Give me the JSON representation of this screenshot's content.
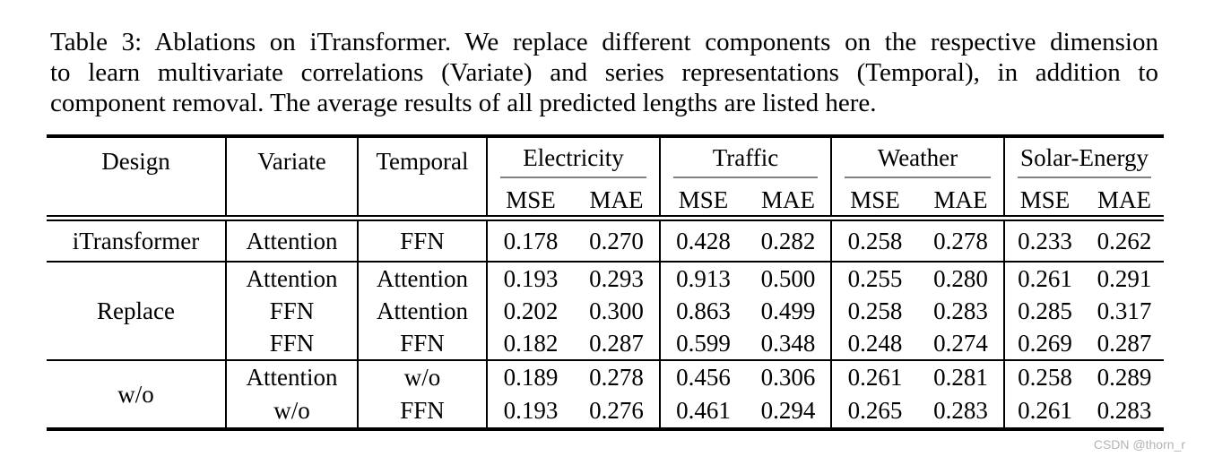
{
  "caption": {
    "lines": [
      "Table 3: Ablations on iTransformer. We replace different components on the respective dimension",
      "to learn multivariate correlations (Variate) and series representations (Temporal), in addition to",
      "component removal. The average results of all predicted lengths are listed here."
    ]
  },
  "table": {
    "col_headers": [
      "Design",
      "Variate",
      "Temporal"
    ],
    "groups": [
      {
        "label": "Electricity"
      },
      {
        "label": "Traffic"
      },
      {
        "label": "Weather"
      },
      {
        "label": "Solar-Energy"
      }
    ],
    "metric_headers": [
      "MSE",
      "MAE",
      "MSE",
      "MAE",
      "MSE",
      "MAE",
      "MSE",
      "MAE"
    ],
    "cmidrule_color": "#808080",
    "sections": [
      {
        "design": "iTransformer",
        "bold_design": true,
        "rows": [
          {
            "variate": "Attention",
            "temporal": "FFN",
            "bold_row_labels": true,
            "values": [
              "0.178",
              "0.270",
              "0.428",
              "0.282",
              "0.258",
              "0.278",
              "0.233",
              "0.262"
            ],
            "bold": [
              true,
              true,
              true,
              true,
              false,
              false,
              true,
              true
            ]
          }
        ]
      },
      {
        "design": "Replace",
        "bold_design": false,
        "rows": [
          {
            "variate": "Attention",
            "temporal": "Attention",
            "bold_row_labels": false,
            "values": [
              "0.193",
              "0.293",
              "0.913",
              "0.500",
              "0.255",
              "0.280",
              "0.261",
              "0.291"
            ],
            "bold": [
              false,
              false,
              false,
              false,
              false,
              false,
              false,
              false
            ]
          },
          {
            "variate": "FFN",
            "temporal": "Attention",
            "bold_row_labels": false,
            "values": [
              "0.202",
              "0.300",
              "0.863",
              "0.499",
              "0.258",
              "0.283",
              "0.285",
              "0.317"
            ],
            "bold": [
              false,
              false,
              false,
              false,
              false,
              false,
              false,
              false
            ]
          },
          {
            "variate": "FFN",
            "temporal": "FFN",
            "bold_row_labels": false,
            "values": [
              "0.182",
              "0.287",
              "0.599",
              "0.348",
              "0.248",
              "0.274",
              "0.269",
              "0.287"
            ],
            "bold": [
              false,
              false,
              false,
              false,
              true,
              true,
              false,
              false
            ]
          }
        ]
      },
      {
        "design": "w/o",
        "bold_design": false,
        "rows": [
          {
            "variate": "Attention",
            "temporal": "w/o",
            "bold_row_labels": false,
            "values": [
              "0.189",
              "0.278",
              "0.456",
              "0.306",
              "0.261",
              "0.281",
              "0.258",
              "0.289"
            ],
            "bold": [
              false,
              false,
              false,
              false,
              false,
              false,
              false,
              false
            ]
          },
          {
            "variate": "w/o",
            "temporal": "FFN",
            "bold_row_labels": false,
            "values": [
              "0.193",
              "0.276",
              "0.461",
              "0.294",
              "0.265",
              "0.283",
              "0.261",
              "0.283"
            ],
            "bold": [
              false,
              false,
              false,
              false,
              false,
              false,
              false,
              false
            ]
          }
        ]
      }
    ]
  },
  "watermark": "CSDN @thorn_r"
}
